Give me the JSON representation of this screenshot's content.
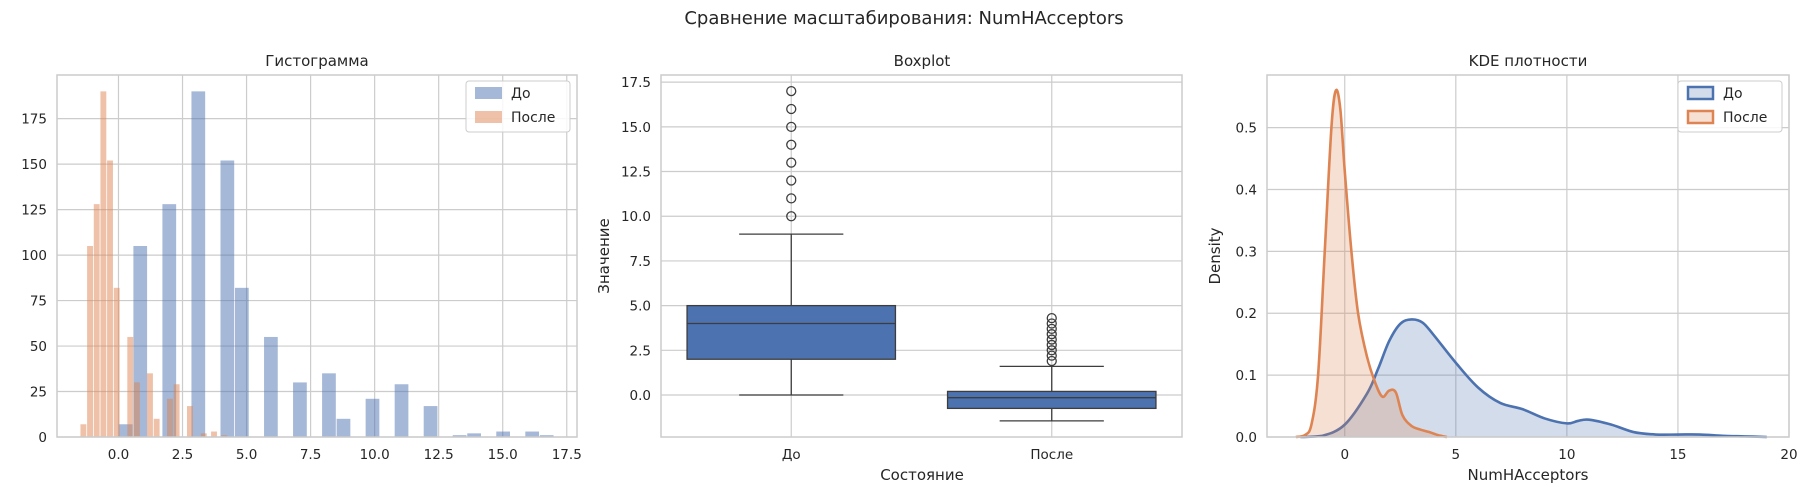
{
  "figure": {
    "suptitle": "Сравнение масштабирования: NumHAcceptors"
  },
  "colors": {
    "before": "#4c72b0",
    "after": "#dd8452"
  },
  "chart_data": [
    {
      "type": "histogram",
      "title": "Гистограмма",
      "legend": {
        "labels": [
          "До",
          "После"
        ],
        "placement": "top-right"
      },
      "xlim": [
        -2.4,
        17.9
      ],
      "ylim": [
        0,
        199
      ],
      "xticks": [
        0.0,
        2.5,
        5.0,
        7.5,
        10.0,
        12.5,
        15.0,
        17.5
      ],
      "xtick_labels": [
        "0.0",
        "2.5",
        "5.0",
        "7.5",
        "10.0",
        "12.5",
        "15.0",
        "17.5"
      ],
      "yticks": [
        0,
        25,
        50,
        75,
        100,
        125,
        150,
        175
      ],
      "ytick_labels": [
        "0",
        "25",
        "50",
        "75",
        "100",
        "125",
        "150",
        "175"
      ],
      "grid": true,
      "series": [
        {
          "name": "До",
          "bins": [
            {
              "x0": 0.0,
              "x1": 0.567,
              "count": 7
            },
            {
              "x0": 0.567,
              "x1": 1.133,
              "count": 105
            },
            {
              "x0": 1.7,
              "x1": 2.267,
              "count": 128
            },
            {
              "x0": 2.833,
              "x1": 3.4,
              "count": 190
            },
            {
              "x0": 3.967,
              "x1": 4.533,
              "count": 152
            },
            {
              "x0": 4.533,
              "x1": 5.1,
              "count": 82
            },
            {
              "x0": 5.667,
              "x1": 6.233,
              "count": 55
            },
            {
              "x0": 6.8,
              "x1": 7.367,
              "count": 30
            },
            {
              "x0": 7.933,
              "x1": 8.5,
              "count": 35
            },
            {
              "x0": 8.5,
              "x1": 9.067,
              "count": 10
            },
            {
              "x0": 9.633,
              "x1": 10.2,
              "count": 21
            },
            {
              "x0": 10.767,
              "x1": 11.333,
              "count": 29
            },
            {
              "x0": 11.9,
              "x1": 12.467,
              "count": 17
            },
            {
              "x0": 13.033,
              "x1": 13.6,
              "count": 1
            },
            {
              "x0": 13.6,
              "x1": 14.167,
              "count": 2
            },
            {
              "x0": 14.733,
              "x1": 15.3,
              "count": 3
            },
            {
              "x0": 15.867,
              "x1": 16.433,
              "count": 3
            },
            {
              "x0": 16.433,
              "x1": 17.0,
              "count": 1
            }
          ]
        },
        {
          "name": "После",
          "bins": [
            {
              "x0": -1.5,
              "x1": -1.24,
              "count": 7
            },
            {
              "x0": -1.24,
              "x1": -0.98,
              "count": 105
            },
            {
              "x0": -0.98,
              "x1": -0.72,
              "count": 128
            },
            {
              "x0": -0.72,
              "x1": -0.46,
              "count": 190
            },
            {
              "x0": -0.46,
              "x1": -0.2,
              "count": 152
            },
            {
              "x0": -0.2,
              "x1": 0.06,
              "count": 82
            },
            {
              "x0": 0.33,
              "x1": 0.59,
              "count": 55
            },
            {
              "x0": 0.59,
              "x1": 0.85,
              "count": 30
            },
            {
              "x0": 1.1,
              "x1": 1.36,
              "count": 35
            },
            {
              "x0": 1.36,
              "x1": 1.62,
              "count": 10
            },
            {
              "x0": 1.88,
              "x1": 2.14,
              "count": 21
            },
            {
              "x0": 2.14,
              "x1": 2.4,
              "count": 29
            },
            {
              "x0": 2.66,
              "x1": 2.92,
              "count": 17
            },
            {
              "x0": 3.2,
              "x1": 3.46,
              "count": 2
            },
            {
              "x0": 3.6,
              "x1": 3.86,
              "count": 3
            },
            {
              "x0": 4.0,
              "x1": 4.26,
              "count": 1
            }
          ]
        }
      ]
    },
    {
      "type": "box",
      "title": "Boxplot",
      "xlabel": "Состояние",
      "ylabel": "Значение",
      "categories": [
        "До",
        "После"
      ],
      "ylim": [
        -2.35,
        17.9
      ],
      "yticks": [
        0.0,
        2.5,
        5.0,
        7.5,
        10.0,
        12.5,
        15.0,
        17.5
      ],
      "ytick_labels": [
        "0.0",
        "2.5",
        "5.0",
        "7.5",
        "10.0",
        "12.5",
        "15.0",
        "17.5"
      ],
      "grid": true,
      "boxes": [
        {
          "name": "До",
          "whisker_low": 0,
          "q1": 2,
          "median": 4,
          "q3": 5,
          "whisker_high": 9,
          "outliers": [
            10,
            11,
            12,
            13,
            14,
            15,
            16,
            17
          ]
        },
        {
          "name": "После",
          "whisker_low": -1.45,
          "q1": -0.75,
          "median": -0.15,
          "q3": 0.2,
          "whisker_high": 1.6,
          "outliers": [
            1.9,
            2.2,
            2.5,
            2.8,
            3.1,
            3.4,
            3.7,
            4.0,
            4.3
          ]
        }
      ]
    },
    {
      "type": "area",
      "title": "KDE плотности",
      "xlabel": "NumHAcceptors",
      "ylabel": "Density",
      "legend": {
        "labels": [
          "До",
          "После"
        ],
        "placement": "top-right"
      },
      "xlim": [
        -3.5,
        20.0
      ],
      "ylim": [
        0,
        0.585
      ],
      "xticks": [
        0,
        5,
        10,
        15,
        20
      ],
      "xtick_labels": [
        "0",
        "5",
        "10",
        "15",
        "20"
      ],
      "yticks": [
        0.0,
        0.1,
        0.2,
        0.3,
        0.4,
        0.5
      ],
      "ytick_labels": [
        "0.0",
        "0.1",
        "0.2",
        "0.3",
        "0.4",
        "0.5"
      ],
      "grid": true,
      "series": [
        {
          "name": "До",
          "x": [
            -2,
            -1,
            0,
            1,
            1.5,
            2,
            2.5,
            3,
            3.5,
            4,
            5,
            6,
            7,
            8,
            9,
            10,
            10.5,
            11,
            12,
            13,
            14,
            15,
            16,
            17,
            18,
            19
          ],
          "y": [
            0,
            0.002,
            0.02,
            0.07,
            0.11,
            0.155,
            0.183,
            0.19,
            0.185,
            0.165,
            0.12,
            0.08,
            0.055,
            0.045,
            0.03,
            0.022,
            0.026,
            0.028,
            0.02,
            0.008,
            0.004,
            0.004,
            0.004,
            0.002,
            0.001,
            0
          ]
        },
        {
          "name": "После",
          "x": [
            -2.2,
            -1.8,
            -1.5,
            -1.2,
            -0.9,
            -0.6,
            -0.4,
            -0.2,
            0.0,
            0.3,
            0.6,
            1.0,
            1.4,
            1.7,
            2.0,
            2.3,
            2.6,
            3.0,
            3.4,
            3.8,
            4.2,
            4.6
          ],
          "y": [
            0,
            0.003,
            0.02,
            0.1,
            0.3,
            0.5,
            0.56,
            0.53,
            0.43,
            0.3,
            0.2,
            0.13,
            0.085,
            0.065,
            0.075,
            0.072,
            0.035,
            0.018,
            0.012,
            0.008,
            0.003,
            0
          ]
        }
      ]
    }
  ]
}
